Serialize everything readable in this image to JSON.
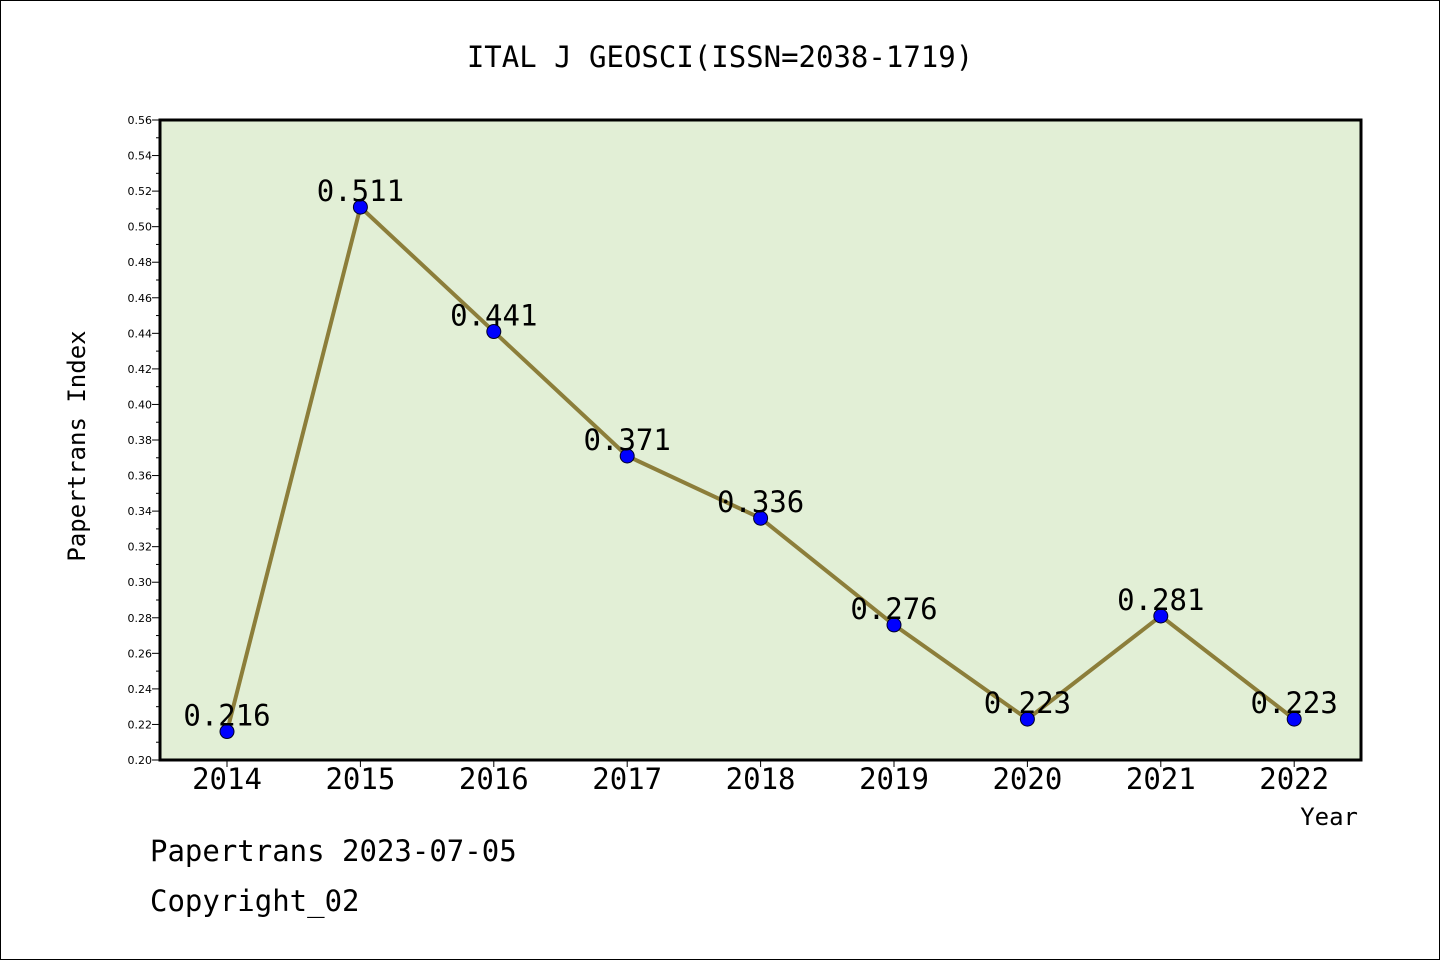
{
  "chart_data": {
    "type": "line",
    "title": "ITAL J GEOSCI(ISSN=2038-1719)",
    "xlabel": "Year",
    "ylabel": "Papertrans Index",
    "categories": [
      "2014",
      "2015",
      "2016",
      "2017",
      "2018",
      "2019",
      "2020",
      "2021",
      "2022"
    ],
    "series": [
      {
        "values": [
          0.216,
          0.511,
          0.441,
          0.371,
          0.336,
          0.276,
          0.223,
          0.281,
          0.223
        ],
        "labels": [
          "0.216",
          "0.511",
          "0.441",
          "0.371",
          "0.336",
          "0.276",
          "0.223",
          "0.281",
          "0.223"
        ]
      }
    ],
    "ylim": [
      0.2,
      0.56
    ],
    "yticks": [
      "0.20",
      "0.22",
      "0.24",
      "0.26",
      "0.28",
      "0.30",
      "0.32",
      "0.34",
      "0.36",
      "0.38",
      "0.40",
      "0.42",
      "0.44",
      "0.46",
      "0.48",
      "0.50",
      "0.52",
      "0.54",
      "0.56"
    ],
    "grid": false,
    "colors": {
      "plot_background": "#e2efd6",
      "line": "#8c7e3a",
      "marker": "#0000ff"
    }
  },
  "footer": {
    "line1": "Papertrans 2023-07-05",
    "line2": "Copyright_02"
  }
}
